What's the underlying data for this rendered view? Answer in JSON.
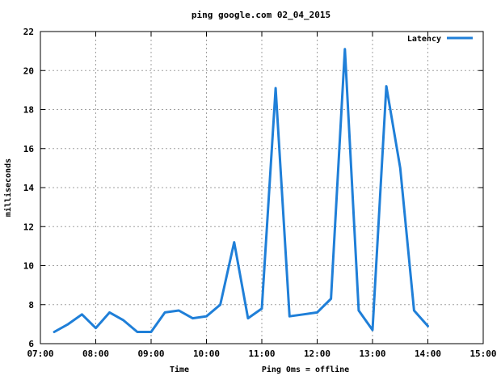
{
  "chart_data": {
    "type": "line",
    "title": "ping google.com 02_04_2015",
    "xlabel": "Time",
    "xlabel_note": "Ping 0ms = offline",
    "ylabel": "milliseconds",
    "x_ticks": [
      "07:00",
      "08:00",
      "09:00",
      "10:00",
      "11:00",
      "12:00",
      "13:00",
      "14:00",
      "15:00"
    ],
    "y_ticks": [
      6,
      8,
      10,
      12,
      14,
      16,
      18,
      20,
      22
    ],
    "xlim": [
      "07:00",
      "15:00"
    ],
    "ylim": [
      6,
      22
    ],
    "grid": true,
    "legend_position": "top-right",
    "series_color": "#1f7fd8",
    "series": [
      {
        "name": "Latency",
        "x": [
          "07:15",
          "07:30",
          "07:45",
          "08:00",
          "08:15",
          "08:30",
          "08:45",
          "09:00",
          "09:15",
          "09:30",
          "09:45",
          "10:00",
          "10:15",
          "10:30",
          "10:45",
          "11:00",
          "11:15",
          "11:30",
          "11:45",
          "12:00",
          "12:15",
          "12:30",
          "12:45",
          "13:00",
          "13:15",
          "13:30",
          "13:45",
          "14:00",
          "14:15",
          "14:30"
        ],
        "values": [
          6.6,
          7.0,
          7.5,
          6.8,
          7.6,
          7.2,
          6.6,
          6.6,
          7.6,
          7.7,
          7.3,
          7.4,
          8.0,
          11.2,
          7.3,
          7.8,
          19.1,
          7.4,
          7.5,
          7.6,
          8.3,
          21.1,
          7.7,
          6.7,
          19.2,
          15.0,
          7.7,
          6.9,
          null,
          null
        ]
      }
    ]
  }
}
